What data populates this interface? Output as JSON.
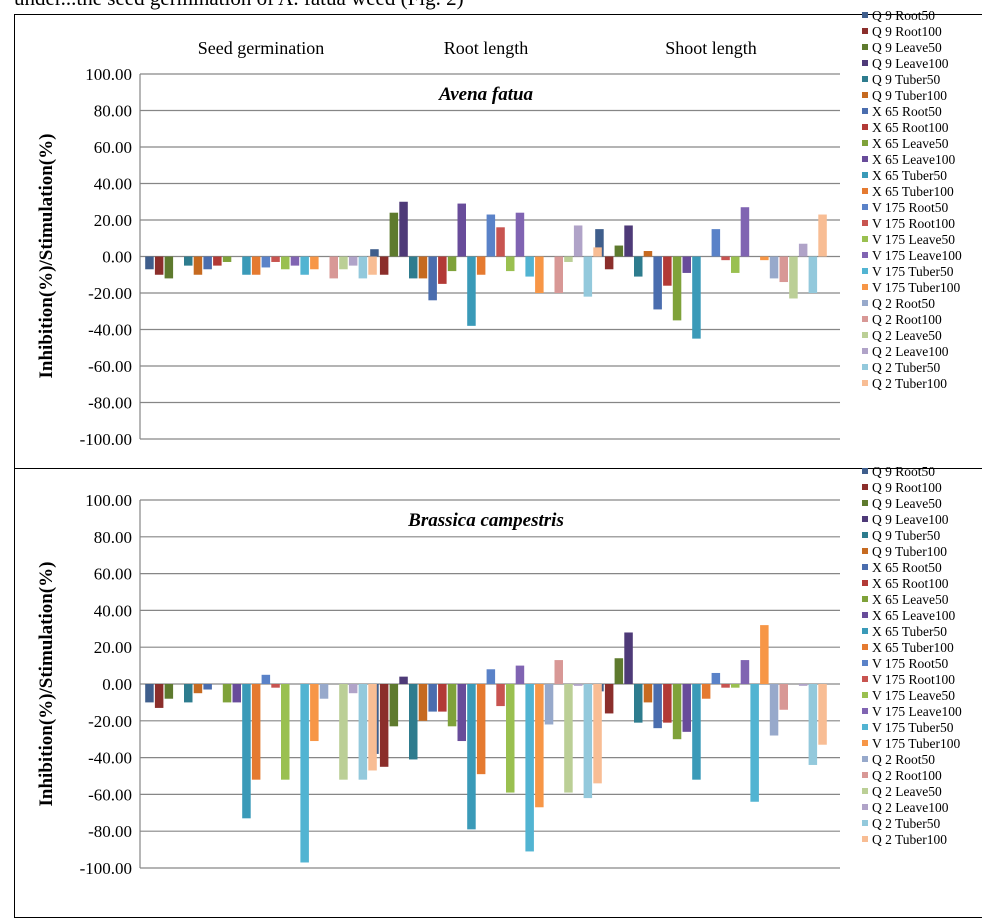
{
  "caption": "under...the seed germination of A. fatua weed (Fig. 2)",
  "ylabel": "Inhibition(%)/Stimulation(%)",
  "categories": [
    "Seed germination",
    "Root length",
    "Shoot length"
  ],
  "colors": [
    "#3F5E8C",
    "#8B2E2B",
    "#5E7A2E",
    "#4E3A78",
    "#2E7C8E",
    "#C66A20",
    "#4A6DAE",
    "#B23A36",
    "#7FA23A",
    "#684C9A",
    "#3A9AB8",
    "#E57A30",
    "#5A82C8",
    "#C85450",
    "#9AC050",
    "#8064B2",
    "#52B4D2",
    "#F79646",
    "#97A9CB",
    "#D89896",
    "#BBCF96",
    "#B0A3C8",
    "#93C9DC",
    "#F8BD94"
  ],
  "chart_data": [
    {
      "type": "bar",
      "title": "Avena fatua",
      "categories": [
        "Seed germination",
        "Root length",
        "Shoot length"
      ],
      "ylabel": "Inhibition(%)/Stimulation(%)",
      "ylim": [
        -100,
        100
      ],
      "yticks": [
        "100.00",
        "80.00",
        "60.00",
        "40.00",
        "20.00",
        "0.00",
        "-20.00",
        "-40.00",
        "-60.00",
        "-80.00",
        "-100.00"
      ],
      "legend_position": "right",
      "series": [
        {
          "name": "Q 9 Root50",
          "values": [
            -7,
            4,
            15
          ]
        },
        {
          "name": "Q 9 Root100",
          "values": [
            -10,
            -10,
            -7
          ]
        },
        {
          "name": "Q 9 Leave50",
          "values": [
            -12,
            24,
            6
          ]
        },
        {
          "name": "Q 9 Leave100",
          "values": [
            0,
            30,
            17
          ]
        },
        {
          "name": "Q 9 Tuber50",
          "values": [
            -5,
            -12,
            -11
          ]
        },
        {
          "name": "Q 9 Tuber100",
          "values": [
            -10,
            -12,
            3
          ]
        },
        {
          "name": "X 65 Root50",
          "values": [
            -7,
            -24,
            -29
          ]
        },
        {
          "name": "X 65 Root100",
          "values": [
            -5,
            -15,
            -16
          ]
        },
        {
          "name": "X 65 Leave50",
          "values": [
            -3,
            -8,
            -35
          ]
        },
        {
          "name": "X 65 Leave100",
          "values": [
            0,
            29,
            -9
          ]
        },
        {
          "name": "X 65 Tuber50",
          "values": [
            -10,
            -38,
            -45
          ]
        },
        {
          "name": "X 65 Tuber100",
          "values": [
            -10,
            -10,
            0
          ]
        },
        {
          "name": "V 175 Root50",
          "values": [
            -6,
            23,
            15
          ]
        },
        {
          "name": "V 175 Root100",
          "values": [
            -3,
            16,
            -2
          ]
        },
        {
          "name": "V 175 Leave50",
          "values": [
            -7,
            -8,
            -9
          ]
        },
        {
          "name": "V 175 Leave100",
          "values": [
            -5,
            24,
            27
          ]
        },
        {
          "name": "V 175 Tuber50",
          "values": [
            -10,
            -11,
            0
          ]
        },
        {
          "name": "V 175 Tuber100",
          "values": [
            -7,
            -20,
            -2
          ]
        },
        {
          "name": "Q 2 Root50",
          "values": [
            0,
            0,
            -12
          ]
        },
        {
          "name": "Q 2 Root100",
          "values": [
            -12,
            -20,
            -14
          ]
        },
        {
          "name": "Q 2 Leave50",
          "values": [
            -7,
            -3,
            -23
          ]
        },
        {
          "name": "Q 2 Leave100",
          "values": [
            -5,
            17,
            7
          ]
        },
        {
          "name": "Q 2 Tuber50",
          "values": [
            -12,
            -22,
            -20
          ]
        },
        {
          "name": "Q 2 Tuber100",
          "values": [
            -10,
            5,
            23
          ]
        }
      ]
    },
    {
      "type": "bar",
      "title": "Brassica campestris",
      "categories": [
        "Seed germination",
        "Root length",
        "Shoot length"
      ],
      "ylabel": "Inhibition(%)/Stimulation(%)",
      "ylim": [
        -100,
        100
      ],
      "yticks": [
        "100.00",
        "80.00",
        "60.00",
        "40.00",
        "20.00",
        "0.00",
        "-20.00",
        "-40.00",
        "-60.00",
        "-80.00",
        "-100.00"
      ],
      "legend_position": "right",
      "series": [
        {
          "name": "Q 9 Root50",
          "values": [
            -10,
            -38,
            -4
          ]
        },
        {
          "name": "Q 9 Root100",
          "values": [
            -13,
            -45,
            -16
          ]
        },
        {
          "name": "Q 9 Leave50",
          "values": [
            -8,
            -23,
            14
          ]
        },
        {
          "name": "Q 9 Leave100",
          "values": [
            0,
            4,
            28
          ]
        },
        {
          "name": "Q 9 Tuber50",
          "values": [
            -10,
            -41,
            -21
          ]
        },
        {
          "name": "Q 9 Tuber100",
          "values": [
            -5,
            -20,
            -10
          ]
        },
        {
          "name": "X 65 Root50",
          "values": [
            -3,
            -15,
            -24
          ]
        },
        {
          "name": "X 65 Root100",
          "values": [
            0,
            -15,
            -21
          ]
        },
        {
          "name": "X 65 Leave50",
          "values": [
            -10,
            -23,
            -30
          ]
        },
        {
          "name": "X 65 Leave100",
          "values": [
            -10,
            -31,
            -26
          ]
        },
        {
          "name": "X 65 Tuber50",
          "values": [
            -73,
            -79,
            -52
          ]
        },
        {
          "name": "X 65 Tuber100",
          "values": [
            -52,
            -49,
            -8
          ]
        },
        {
          "name": "V 175 Root50",
          "values": [
            5,
            8,
            6
          ]
        },
        {
          "name": "V 175 Root100",
          "values": [
            -2,
            -12,
            -2
          ]
        },
        {
          "name": "V 175 Leave50",
          "values": [
            -52,
            -59,
            -2
          ]
        },
        {
          "name": "V 175 Leave100",
          "values": [
            0,
            10,
            13
          ]
        },
        {
          "name": "V 175 Tuber50",
          "values": [
            -97,
            -91,
            -64
          ]
        },
        {
          "name": "V 175 Tuber100",
          "values": [
            -31,
            -67,
            32
          ]
        },
        {
          "name": "Q 2 Root50",
          "values": [
            -8,
            -22,
            -28
          ]
        },
        {
          "name": "Q 2 Root100",
          "values": [
            0,
            13,
            -14
          ]
        },
        {
          "name": "Q 2 Leave50",
          "values": [
            -52,
            -59,
            0
          ]
        },
        {
          "name": "Q 2 Leave100",
          "values": [
            -5,
            -1,
            -1
          ]
        },
        {
          "name": "Q 2 Tuber50",
          "values": [
            -52,
            -62,
            -44
          ]
        },
        {
          "name": "Q 2 Tuber100",
          "values": [
            -47,
            -54,
            -33
          ]
        }
      ]
    }
  ]
}
